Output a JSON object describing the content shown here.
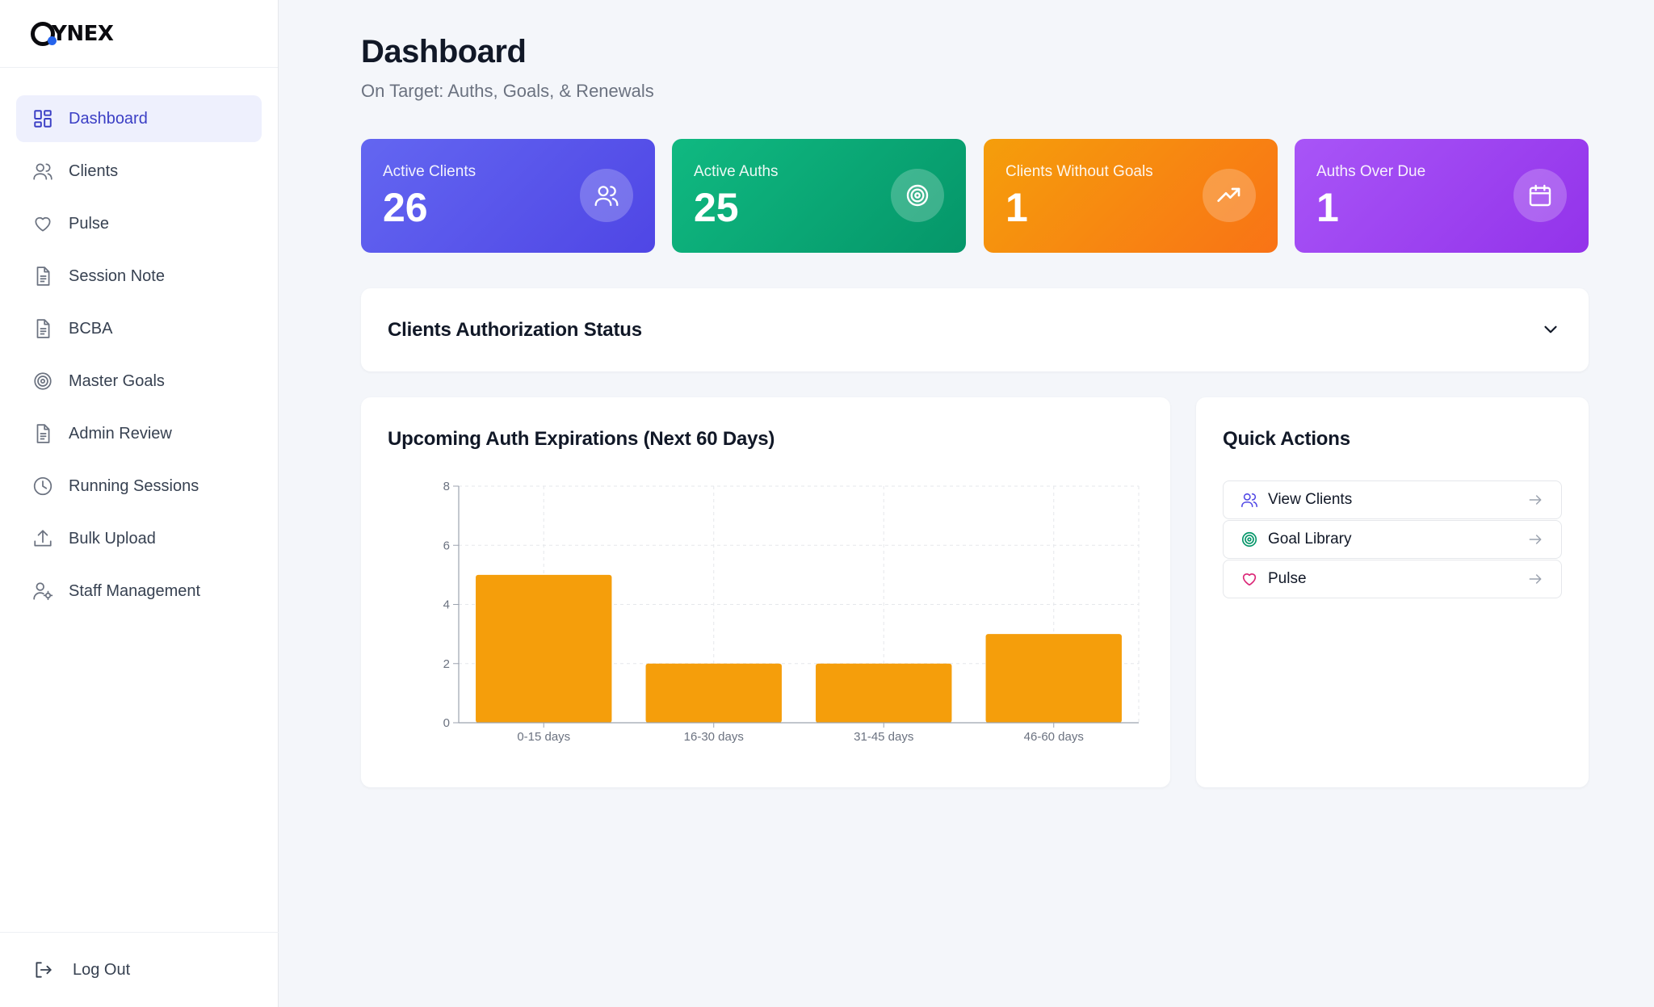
{
  "brand": {
    "logo_text": "YNEX"
  },
  "sidebar": {
    "items": [
      {
        "label": "Dashboard",
        "icon": "dashboard-grid-icon",
        "active": true
      },
      {
        "label": "Clients",
        "icon": "users-icon"
      },
      {
        "label": "Pulse",
        "icon": "heart-icon"
      },
      {
        "label": "Session Note",
        "icon": "document-icon"
      },
      {
        "label": "BCBA",
        "icon": "document-icon"
      },
      {
        "label": "Master Goals",
        "icon": "target-icon"
      },
      {
        "label": "Admin Review",
        "icon": "document-icon"
      },
      {
        "label": "Running Sessions",
        "icon": "clock-icon"
      },
      {
        "label": "Bulk Upload",
        "icon": "upload-icon"
      },
      {
        "label": "Staff Management",
        "icon": "user-gear-icon"
      }
    ],
    "logout_label": "Log Out"
  },
  "header": {
    "title": "Dashboard",
    "subtitle": "On Target: Auths, Goals, & Renewals"
  },
  "stats": [
    {
      "label": "Active Clients",
      "value": "26",
      "icon": "users-icon",
      "color": "#5b5cf0"
    },
    {
      "label": "Active Auths",
      "value": "25",
      "icon": "target-icon",
      "color": "#0fa976"
    },
    {
      "label": "Clients Without Goals",
      "value": "1",
      "icon": "trending-up-icon",
      "color": "#f7891a"
    },
    {
      "label": "Auths Over Due",
      "value": "1",
      "icon": "calendar-icon",
      "color": "#a044f0"
    }
  ],
  "auth_status": {
    "title": "Clients Authorization Status"
  },
  "chart_card": {
    "title": "Upcoming Auth Expirations (Next 60 Days)"
  },
  "chart_data": {
    "type": "bar",
    "categories": [
      "0-15 days",
      "16-30 days",
      "31-45 days",
      "46-60 days"
    ],
    "values": [
      5,
      2,
      2,
      3
    ],
    "ylim": [
      0,
      8
    ],
    "yticks": [
      0,
      2,
      4,
      6,
      8
    ],
    "grid": true,
    "bar_color": "#f59e0b"
  },
  "quick_actions": {
    "title": "Quick Actions",
    "items": [
      {
        "label": "View Clients",
        "icon": "users-icon",
        "color": "#4f46e5"
      },
      {
        "label": "Goal Library",
        "icon": "target-icon",
        "color": "#059669"
      },
      {
        "label": "Pulse",
        "icon": "heart-icon",
        "color": "#db2777"
      }
    ]
  }
}
